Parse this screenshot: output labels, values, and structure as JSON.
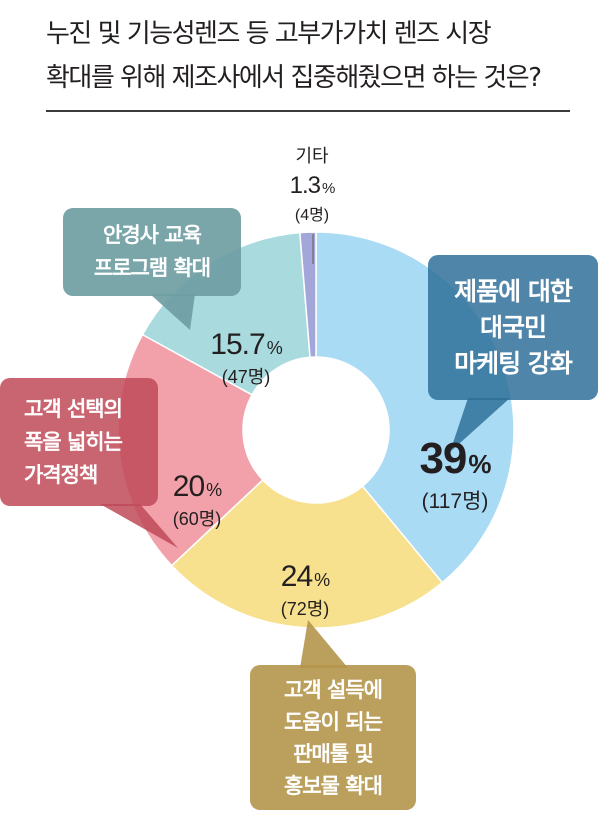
{
  "title_lines": [
    "누진 및 기능성렌즈 등 고부가가치 렌즈 시장",
    "확대를 위해 제조사에서 집중해줬으면 하는 것은?"
  ],
  "chart_data": {
    "type": "pie",
    "style": "donut",
    "title": "누진 및 기능성렌즈 등 고부가가치 렌즈 시장 확대를 위해 제조사에서 집중해줬으면 하는 것은?",
    "unit": "%",
    "slices": [
      {
        "label": "제품에 대한 대국민 마케팅 강화",
        "label_lines": [
          "제품에 대한",
          "대국민",
          "마케팅 강화"
        ],
        "value": 39,
        "pct_text": "39",
        "count": "(117명)",
        "color": "#a9dbf5",
        "callout_color": "#2f7099"
      },
      {
        "label": "고객 설득에 도움이 되는 판매툴 및 홍보물 확대",
        "label_lines": [
          "고객 설득에",
          "도움이 되는",
          "판매툴 및",
          "홍보물 확대"
        ],
        "value": 24,
        "pct_text": "24",
        "count": "(72명)",
        "color": "#f7e08e",
        "callout_color": "#b4954a"
      },
      {
        "label": "고객 선택의 폭을 넓히는 가격정책",
        "label_lines": [
          "고객 선택의",
          "폭을 넓히는",
          "가격정책"
        ],
        "value": 20,
        "pct_text": "20",
        "count": "(60명)",
        "color": "#f2a0aa",
        "callout_color": "#bf4a58"
      },
      {
        "label": "안경사 교육 프로그램 확대",
        "label_lines": [
          "안경사 교육",
          "프로그램 확대"
        ],
        "value": 15.7,
        "pct_text": "15.7",
        "count": "(47명)",
        "color": "#a8dade",
        "callout_color": "#6f9ea3"
      },
      {
        "label": "기타",
        "label_lines": [
          "기타"
        ],
        "value": 1.3,
        "pct_text": "1.3",
        "count": "(4명)",
        "color": "#a3a6d9",
        "callout_color": ""
      }
    ],
    "percent_sign": "%"
  }
}
